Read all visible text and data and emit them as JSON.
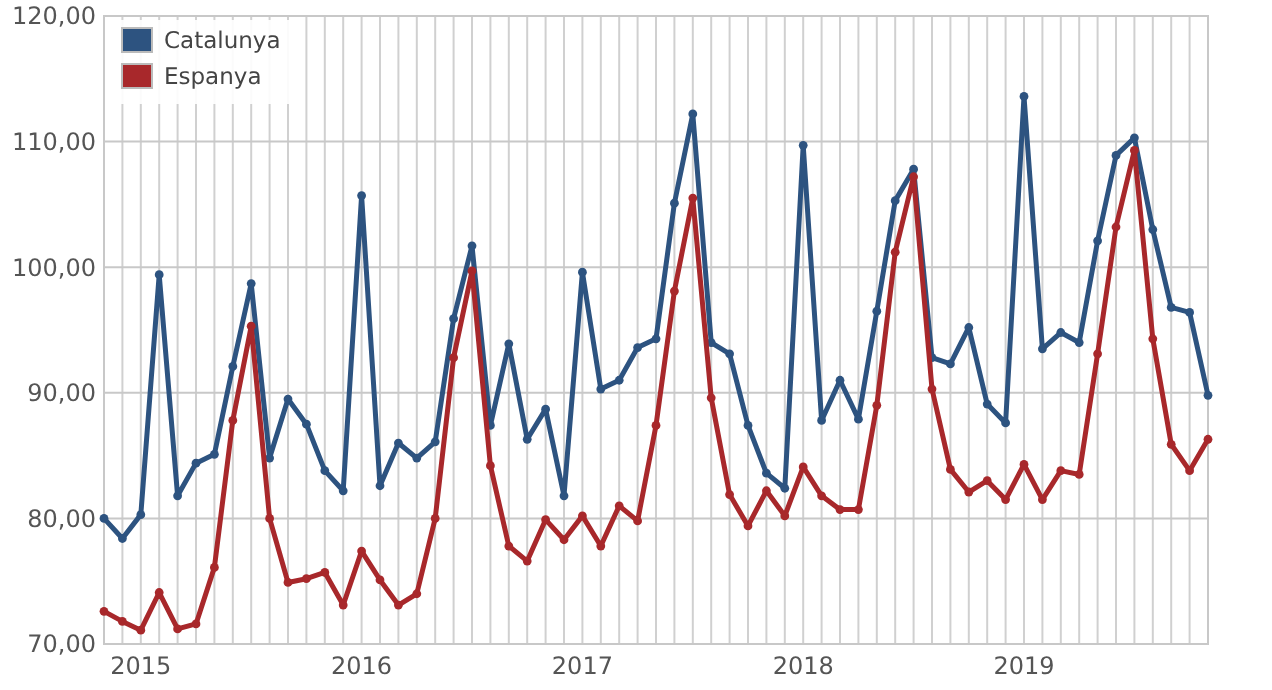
{
  "chart_data": {
    "type": "line",
    "categories": [
      null,
      null,
      "2015",
      null,
      null,
      null,
      null,
      null,
      null,
      null,
      null,
      null,
      null,
      null,
      "2016",
      null,
      null,
      null,
      null,
      null,
      null,
      null,
      null,
      null,
      null,
      null,
      "2017",
      null,
      null,
      null,
      null,
      null,
      null,
      null,
      null,
      null,
      null,
      null,
      "2018",
      null,
      null,
      null,
      null,
      null,
      null,
      null,
      null,
      null,
      null,
      null,
      "2019",
      null,
      null,
      null,
      null,
      null,
      null,
      null,
      null,
      null,
      null
    ],
    "series": [
      {
        "name": "Catalunya",
        "color": "#2d5380",
        "values": [
          80.0,
          78.4,
          80.3,
          99.4,
          81.8,
          84.4,
          85.1,
          92.1,
          98.7,
          84.8,
          89.5,
          87.5,
          83.8,
          82.2,
          105.7,
          82.6,
          86.0,
          84.8,
          86.1,
          95.9,
          101.7,
          87.4,
          93.9,
          86.3,
          88.7,
          81.8,
          99.6,
          90.3,
          91.0,
          93.6,
          94.3,
          105.1,
          112.2,
          94.0,
          93.1,
          87.4,
          83.6,
          82.4,
          109.7,
          87.8,
          91.0,
          87.9,
          96.5,
          105.3,
          107.8,
          92.8,
          92.3,
          95.2,
          89.1,
          87.6,
          113.6,
          93.5,
          94.8,
          94.0,
          102.1,
          108.9,
          110.3,
          103.0,
          96.8,
          96.4,
          89.8
        ]
      },
      {
        "name": "Espanya",
        "color": "#a8282b",
        "values": [
          72.6,
          71.8,
          71.1,
          74.1,
          71.2,
          71.6,
          76.1,
          87.8,
          95.3,
          80.0,
          74.9,
          75.2,
          75.7,
          73.1,
          77.4,
          75.1,
          73.1,
          74.0,
          80.0,
          92.8,
          99.7,
          84.2,
          77.8,
          76.6,
          79.9,
          78.3,
          80.2,
          77.8,
          81.0,
          79.8,
          87.4,
          98.1,
          105.5,
          89.6,
          81.9,
          79.4,
          82.2,
          80.2,
          84.1,
          81.8,
          80.7,
          80.7,
          89.0,
          101.2,
          107.2,
          90.3,
          83.9,
          82.1,
          83.0,
          81.5,
          84.3,
          81.5,
          83.8,
          83.5,
          93.1,
          103.2,
          109.3,
          94.3,
          85.9,
          83.8,
          86.3
        ]
      }
    ],
    "ylim": [
      70,
      120
    ],
    "yticks": [
      {
        "value": 70,
        "label": "70,00"
      },
      {
        "value": 80,
        "label": "80,00"
      },
      {
        "value": 90,
        "label": "90,00"
      },
      {
        "value": 100,
        "label": "100,00"
      },
      {
        "value": 110,
        "label": "110,00"
      },
      {
        "value": 120,
        "label": "120,00"
      }
    ],
    "grid": true,
    "legend": "top left",
    "marker": "circle",
    "line_style": "solid"
  }
}
